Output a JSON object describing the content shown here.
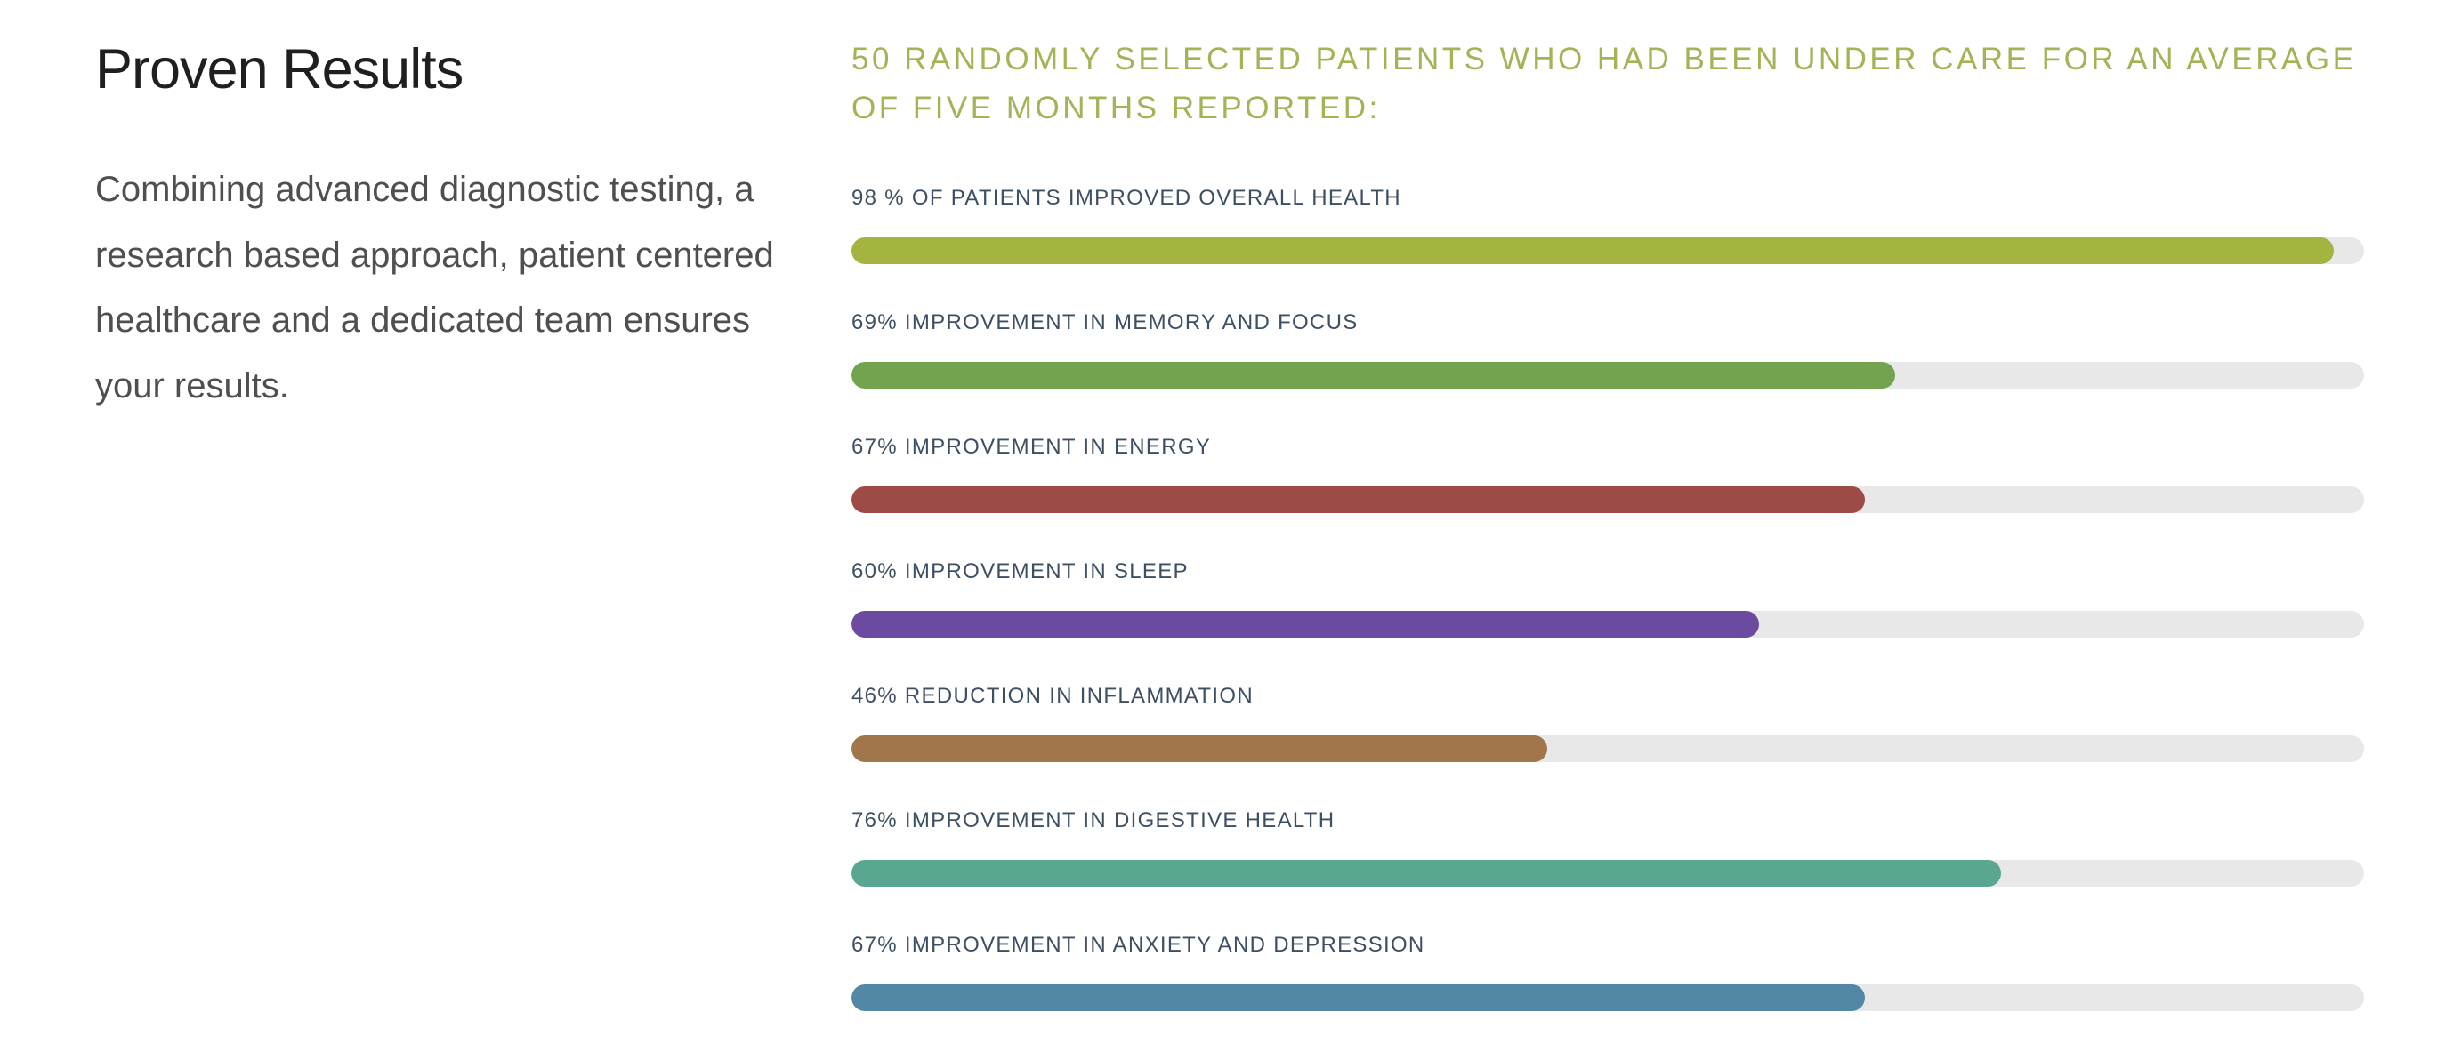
{
  "intro": {
    "title": "Proven Results",
    "description": "Combining advanced diagnostic testing, a research based approach, patient centered healthcare and a dedicated team ensures your results."
  },
  "colors": {
    "heading_accent": "#a4b356",
    "label_text": "#3d4f63",
    "title_text": "#1f1f1f",
    "body_text": "#4f4f4f",
    "bar_track": "#e8e8e8"
  },
  "chart_data": {
    "type": "bar",
    "orientation": "horizontal",
    "title": "50 RANDOMLY SELECTED PATIENTS WHO HAD BEEN UNDER CARE FOR AN AVERAGE OF FIVE MONTHS REPORTED:",
    "xlim": [
      0,
      100
    ],
    "unit": "%",
    "grid": false,
    "legend": "none",
    "track_color": "#e8e8e8",
    "categories": [
      "98 % OF PATIENTS IMPROVED OVERALL HEALTH",
      "69% IMPROVEMENT IN MEMORY AND FOCUS",
      "67% IMPROVEMENT IN ENERGY",
      "60% IMPROVEMENT IN SLEEP",
      "46% REDUCTION IN INFLAMMATION",
      "76% IMPROVEMENT IN DIGESTIVE HEALTH",
      "67% IMPROVEMENT IN ANXIETY AND DEPRESSION"
    ],
    "values": [
      98,
      69,
      67,
      60,
      46,
      76,
      67
    ],
    "bar_colors": [
      "#a5b43f",
      "#74a350",
      "#9d4b45",
      "#6b4aa0",
      "#a0764a",
      "#59a691",
      "#5287a5"
    ]
  }
}
